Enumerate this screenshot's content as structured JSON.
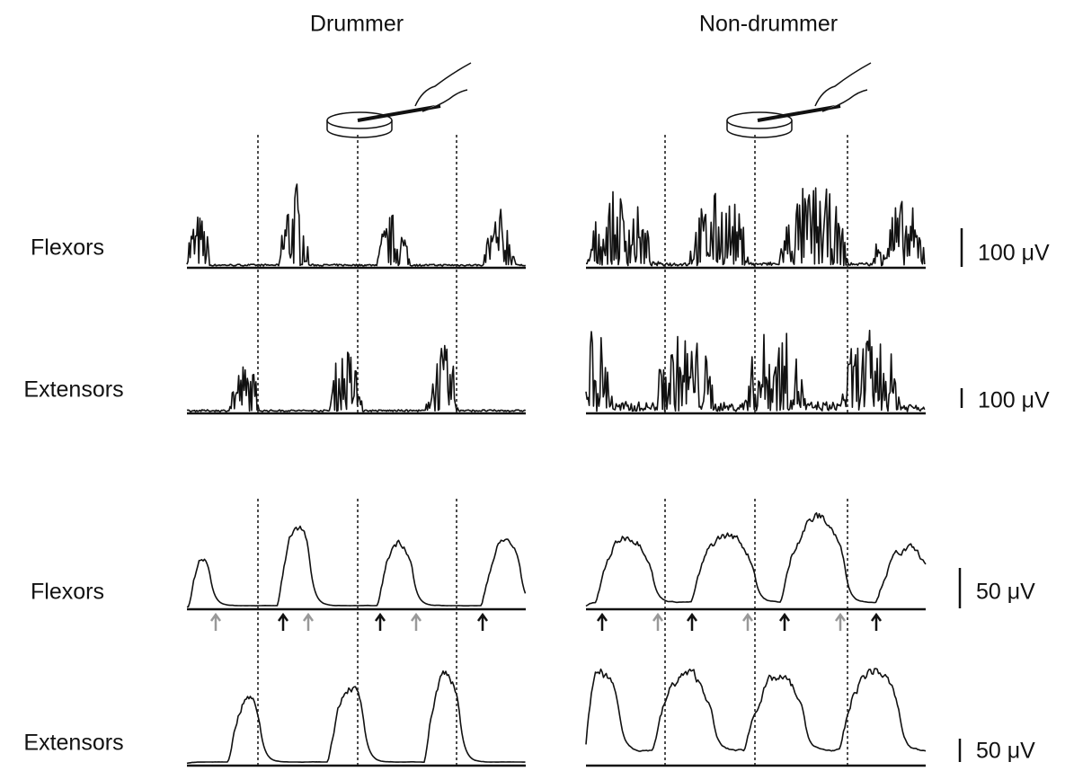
{
  "columns": [
    "Drummer",
    "Non-drummer"
  ],
  "rows": [
    {
      "label": "Flexors",
      "scale": "100 μV"
    },
    {
      "label": "Extensors",
      "scale": "100 μV"
    },
    {
      "label": "Flexors",
      "scale": "50 μV"
    },
    {
      "label": "Extensors",
      "scale": "50 μV"
    }
  ]
}
